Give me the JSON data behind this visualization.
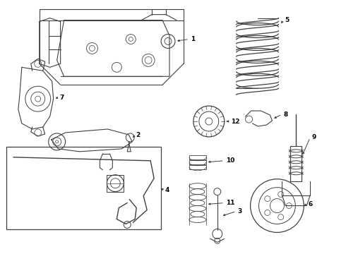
{
  "bg_color": "#ffffff",
  "line_color": "#404040",
  "label_color": "#000000",
  "label_fontsize": 6.5,
  "fig_width": 4.9,
  "fig_height": 3.6,
  "dpi": 100
}
